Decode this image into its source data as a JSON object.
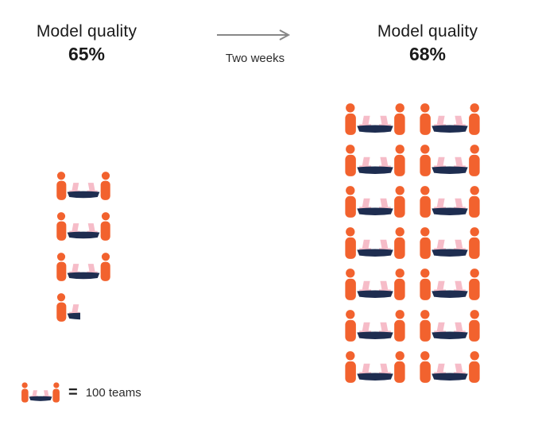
{
  "before": {
    "title": "Model quality",
    "value": "65%"
  },
  "transition": {
    "label": "Two weeks"
  },
  "after": {
    "title": "Model quality",
    "value": "68%"
  },
  "legend": {
    "equals": "=",
    "label": "100 teams"
  },
  "colors": {
    "person_orange": "#f2622e",
    "table_navy": "#1e2d50",
    "laptop_pink": "#f6bcc8",
    "arrow_gray": "#878787"
  },
  "chart_data": {
    "type": "pictograph",
    "title": "Model quality before and after two weeks",
    "unit": {
      "icon": "team-table-icon",
      "label": "100 teams",
      "value": 100
    },
    "series": [
      {
        "key": "before",
        "label": "Model quality",
        "value_label": "65%",
        "model_quality_pct": 65,
        "icon_count": 3.5,
        "teams": 350
      },
      {
        "key": "after",
        "label": "Model quality",
        "value_label": "68%",
        "model_quality_pct": 68,
        "icon_count": 14,
        "teams": 1400
      }
    ],
    "annotation": "Two weeks",
    "layout": {
      "before_columns": 1,
      "after_columns": 2,
      "legend_position": "bottom-left"
    }
  }
}
